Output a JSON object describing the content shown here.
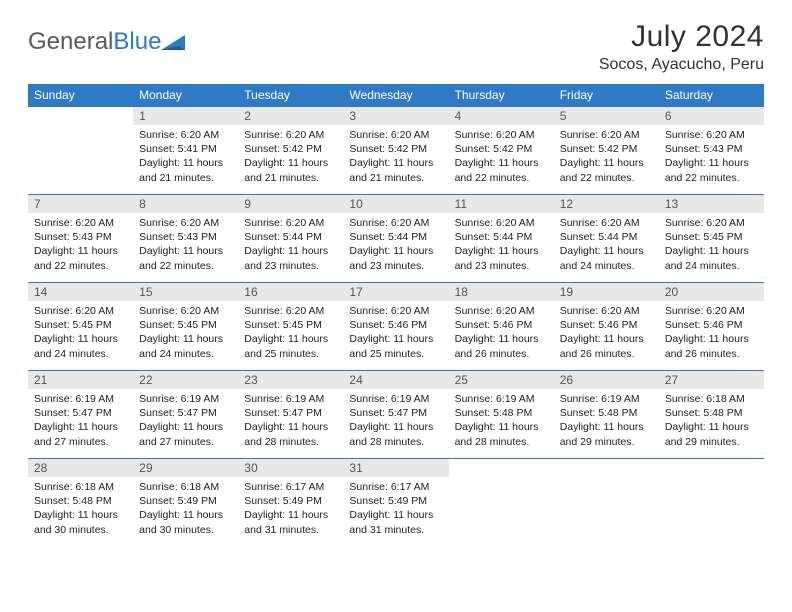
{
  "logo": {
    "text1": "General",
    "text2": "Blue"
  },
  "title": "July 2024",
  "location": "Socos, Ayacucho, Peru",
  "colors": {
    "header_bg": "#2f7ac4",
    "header_text": "#ffffff",
    "daynum_bg": "#e8e8e8",
    "border": "#2f7ac4",
    "logo_gray": "#5a5a5a",
    "logo_blue": "#2f7ac4"
  },
  "weekdays": [
    "Sunday",
    "Monday",
    "Tuesday",
    "Wednesday",
    "Thursday",
    "Friday",
    "Saturday"
  ],
  "weeks": [
    [
      null,
      {
        "n": "1",
        "sr": "6:20 AM",
        "ss": "5:41 PM",
        "dl": "11 hours and 21 minutes."
      },
      {
        "n": "2",
        "sr": "6:20 AM",
        "ss": "5:42 PM",
        "dl": "11 hours and 21 minutes."
      },
      {
        "n": "3",
        "sr": "6:20 AM",
        "ss": "5:42 PM",
        "dl": "11 hours and 21 minutes."
      },
      {
        "n": "4",
        "sr": "6:20 AM",
        "ss": "5:42 PM",
        "dl": "11 hours and 22 minutes."
      },
      {
        "n": "5",
        "sr": "6:20 AM",
        "ss": "5:42 PM",
        "dl": "11 hours and 22 minutes."
      },
      {
        "n": "6",
        "sr": "6:20 AM",
        "ss": "5:43 PM",
        "dl": "11 hours and 22 minutes."
      }
    ],
    [
      {
        "n": "7",
        "sr": "6:20 AM",
        "ss": "5:43 PM",
        "dl": "11 hours and 22 minutes."
      },
      {
        "n": "8",
        "sr": "6:20 AM",
        "ss": "5:43 PM",
        "dl": "11 hours and 22 minutes."
      },
      {
        "n": "9",
        "sr": "6:20 AM",
        "ss": "5:44 PM",
        "dl": "11 hours and 23 minutes."
      },
      {
        "n": "10",
        "sr": "6:20 AM",
        "ss": "5:44 PM",
        "dl": "11 hours and 23 minutes."
      },
      {
        "n": "11",
        "sr": "6:20 AM",
        "ss": "5:44 PM",
        "dl": "11 hours and 23 minutes."
      },
      {
        "n": "12",
        "sr": "6:20 AM",
        "ss": "5:44 PM",
        "dl": "11 hours and 24 minutes."
      },
      {
        "n": "13",
        "sr": "6:20 AM",
        "ss": "5:45 PM",
        "dl": "11 hours and 24 minutes."
      }
    ],
    [
      {
        "n": "14",
        "sr": "6:20 AM",
        "ss": "5:45 PM",
        "dl": "11 hours and 24 minutes."
      },
      {
        "n": "15",
        "sr": "6:20 AM",
        "ss": "5:45 PM",
        "dl": "11 hours and 24 minutes."
      },
      {
        "n": "16",
        "sr": "6:20 AM",
        "ss": "5:45 PM",
        "dl": "11 hours and 25 minutes."
      },
      {
        "n": "17",
        "sr": "6:20 AM",
        "ss": "5:46 PM",
        "dl": "11 hours and 25 minutes."
      },
      {
        "n": "18",
        "sr": "6:20 AM",
        "ss": "5:46 PM",
        "dl": "11 hours and 26 minutes."
      },
      {
        "n": "19",
        "sr": "6:20 AM",
        "ss": "5:46 PM",
        "dl": "11 hours and 26 minutes."
      },
      {
        "n": "20",
        "sr": "6:20 AM",
        "ss": "5:46 PM",
        "dl": "11 hours and 26 minutes."
      }
    ],
    [
      {
        "n": "21",
        "sr": "6:19 AM",
        "ss": "5:47 PM",
        "dl": "11 hours and 27 minutes."
      },
      {
        "n": "22",
        "sr": "6:19 AM",
        "ss": "5:47 PM",
        "dl": "11 hours and 27 minutes."
      },
      {
        "n": "23",
        "sr": "6:19 AM",
        "ss": "5:47 PM",
        "dl": "11 hours and 28 minutes."
      },
      {
        "n": "24",
        "sr": "6:19 AM",
        "ss": "5:47 PM",
        "dl": "11 hours and 28 minutes."
      },
      {
        "n": "25",
        "sr": "6:19 AM",
        "ss": "5:48 PM",
        "dl": "11 hours and 28 minutes."
      },
      {
        "n": "26",
        "sr": "6:19 AM",
        "ss": "5:48 PM",
        "dl": "11 hours and 29 minutes."
      },
      {
        "n": "27",
        "sr": "6:18 AM",
        "ss": "5:48 PM",
        "dl": "11 hours and 29 minutes."
      }
    ],
    [
      {
        "n": "28",
        "sr": "6:18 AM",
        "ss": "5:48 PM",
        "dl": "11 hours and 30 minutes."
      },
      {
        "n": "29",
        "sr": "6:18 AM",
        "ss": "5:49 PM",
        "dl": "11 hours and 30 minutes."
      },
      {
        "n": "30",
        "sr": "6:17 AM",
        "ss": "5:49 PM",
        "dl": "11 hours and 31 minutes."
      },
      {
        "n": "31",
        "sr": "6:17 AM",
        "ss": "5:49 PM",
        "dl": "11 hours and 31 minutes."
      },
      null,
      null,
      null
    ]
  ],
  "labels": {
    "sunrise": "Sunrise:",
    "sunset": "Sunset:",
    "daylight": "Daylight:"
  }
}
